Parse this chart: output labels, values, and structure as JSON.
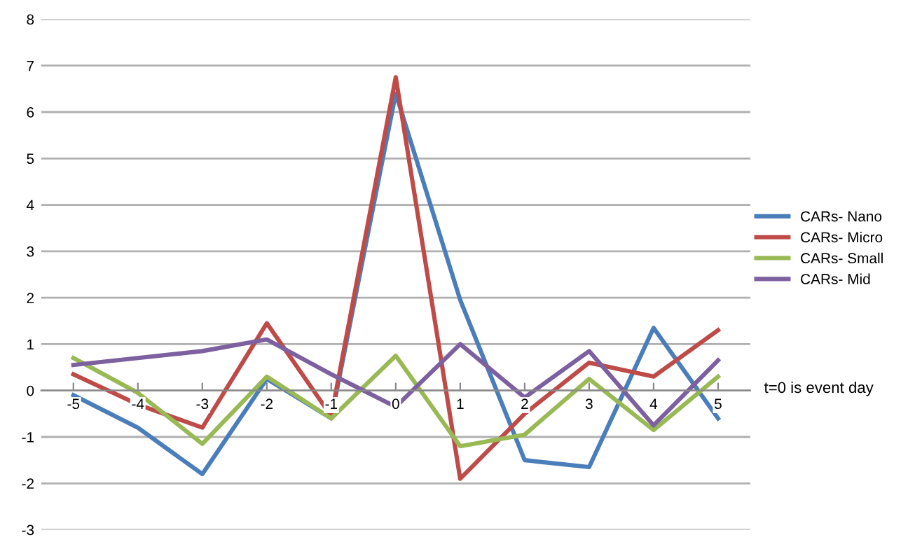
{
  "chart_data": {
    "type": "line",
    "categories": [
      "-5",
      "-4",
      "-3",
      "-2",
      "-1",
      "0",
      "1",
      "2",
      "3",
      "4",
      "5"
    ],
    "series": [
      {
        "name": "CARs- Nano",
        "color": "#4a7ebb",
        "values": [
          -0.1,
          -0.8,
          -1.8,
          0.25,
          -0.6,
          6.4,
          1.95,
          -1.5,
          -1.65,
          1.35,
          -0.6
        ]
      },
      {
        "name": "CARs- Micro",
        "color": "#be4b48",
        "values": [
          0.35,
          -0.3,
          -0.8,
          1.45,
          -0.55,
          6.75,
          -1.9,
          -0.5,
          0.6,
          0.3,
          1.3
        ]
      },
      {
        "name": "CARs- Small",
        "color": "#98b954",
        "values": [
          0.7,
          -0.05,
          -1.15,
          0.3,
          -0.6,
          0.75,
          -1.2,
          -0.95,
          0.25,
          -0.85,
          0.3
        ]
      },
      {
        "name": "CARs- Mid",
        "color": "#7d60a0",
        "values": [
          0.55,
          0.7,
          0.85,
          1.1,
          0.35,
          -0.35,
          1.0,
          -0.15,
          0.85,
          -0.75,
          0.65
        ]
      }
    ],
    "ylim": [
      -3,
      8
    ],
    "yticks": [
      -3,
      -2,
      -1,
      0,
      1,
      2,
      3,
      4,
      5,
      6,
      7,
      8
    ],
    "grid": "y",
    "legend": "right",
    "marker": "none",
    "line_style": "solid",
    "annotations": [
      "t=0 is event day"
    ]
  }
}
